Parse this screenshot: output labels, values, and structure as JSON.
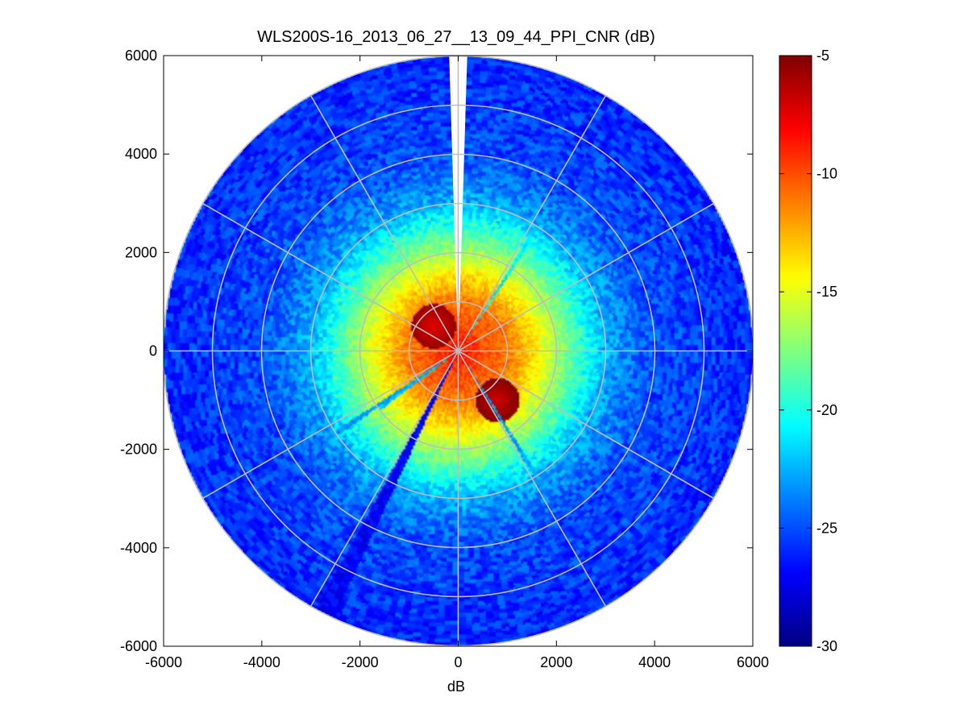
{
  "chart_data": {
    "type": "heatmap",
    "subtype": "polar-ppi",
    "title": "WLS200S-16_2013_06_27__13_09_44_PPI_CNR (dB)",
    "xlabel": "dB",
    "ylabel": "",
    "xlim": [
      -6000,
      6000
    ],
    "ylim": [
      -6000,
      6000
    ],
    "x_ticks": [
      -6000,
      -4000,
      -2000,
      0,
      2000,
      4000,
      6000
    ],
    "y_ticks": [
      -6000,
      -4000,
      -2000,
      0,
      2000,
      4000,
      6000
    ],
    "x_tick_labels": [
      "-6000",
      "-4000",
      "-2000",
      "0",
      "2000",
      "4000",
      "6000"
    ],
    "y_tick_labels": [
      "-6000",
      "-4000",
      "-2000",
      "0",
      "2000",
      "4000",
      "6000"
    ],
    "max_range_m": 6000,
    "range_rings_m": [
      1000,
      2000,
      3000,
      4000,
      5000,
      6000
    ],
    "radial_lines_deg": [
      0,
      30,
      60,
      90,
      120,
      150,
      180,
      210,
      240,
      270,
      300,
      330
    ],
    "grid": true,
    "colorbar": {
      "position": "right",
      "min": -30,
      "max": -5,
      "ticks": [
        -5,
        -10,
        -15,
        -20,
        -25,
        -30
      ],
      "tick_labels": [
        "-5",
        "-10",
        "-15",
        "-20",
        "-25",
        "-30"
      ],
      "colormap": "jet"
    },
    "cnr_profile": {
      "range_m": [
        0,
        500,
        1000,
        1500,
        2000,
        2500,
        3000,
        3500,
        4000,
        5000,
        6000
      ],
      "cnr_db": [
        -8,
        -10,
        -11,
        -13.5,
        -16.5,
        -19.5,
        -22.5,
        -24,
        -25,
        -25.5,
        -26
      ]
    },
    "hotspots": [
      {
        "x": 800,
        "y": -1000,
        "cnr_db": -7
      },
      {
        "x": -500,
        "y": 500,
        "cnr_db": -7.5
      }
    ],
    "blocked_sectors_deg": [
      {
        "azimuth": 0,
        "width": 3.5,
        "from_m": 700,
        "to_m": 6000,
        "note": "no data (white gap)"
      }
    ],
    "low_cnr_beams_deg": [
      {
        "azimuth": 33,
        "width": 2,
        "from_m": 300,
        "to_m": 4500,
        "cnr_db": -21
      },
      {
        "azimuth": 148,
        "width": 2,
        "from_m": 300,
        "to_m": 6000,
        "cnr_db": -23
      },
      {
        "azimuth": 207,
        "width": 4,
        "from_m": 200,
        "to_m": 6000,
        "cnr_db": -27
      },
      {
        "azimuth": 234,
        "width": 2.5,
        "from_m": 300,
        "to_m": 2000,
        "cnr_db": -22
      },
      {
        "azimuth": 236,
        "width": 2,
        "from_m": 300,
        "to_m": 4000,
        "cnr_db": -23
      }
    ]
  },
  "colors": {
    "grid": "#bdbdbd",
    "axis": "#000000",
    "background": "#ffffff",
    "gap": "#ffffff"
  }
}
